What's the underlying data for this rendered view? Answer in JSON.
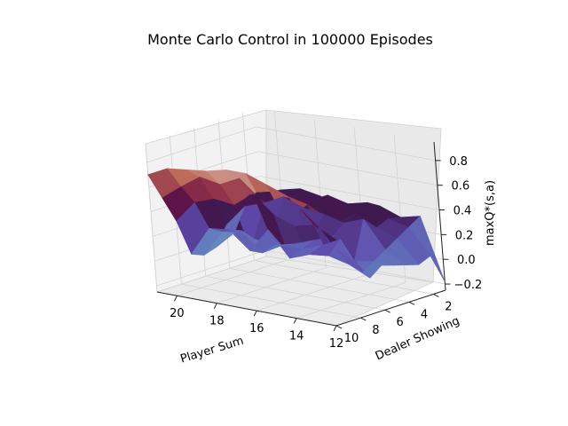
{
  "chart_data": {
    "type": "surface3d",
    "title": "Monte Carlo Control in 100000 Episodes",
    "xlabel": "Player Sum",
    "ylabel": "Dealer Showing",
    "zlabel": "maxQ*(s,a)",
    "x_ticks": [
      "20",
      "18",
      "16",
      "14",
      "12"
    ],
    "y_ticks": [
      "2",
      "4",
      "6",
      "8",
      "10"
    ],
    "z_ticks": [
      "0.8",
      "0.6",
      "0.4",
      "0.2",
      "0.0",
      "−0.2"
    ],
    "zlim": [
      -0.25,
      0.95
    ],
    "colormap": "twilight",
    "grid": true,
    "player_sum": [
      12,
      13,
      14,
      15,
      16,
      17,
      18,
      19,
      20,
      21
    ],
    "dealer_showing": [
      1,
      2,
      3,
      4,
      5,
      6,
      7,
      8,
      9,
      10
    ],
    "z": [
      [
        -0.18,
        0.06,
        0.02,
        0.05,
        0.08,
        0.11,
        0.04,
        0.2,
        0.38,
        0.62
      ],
      [
        0.32,
        0.26,
        0.2,
        0.14,
        0.08,
        0.02,
        0.12,
        0.28,
        0.46,
        0.7
      ],
      [
        0.28,
        0.3,
        0.26,
        0.36,
        0.05,
        0.26,
        0.16,
        0.44,
        0.6,
        0.74
      ],
      [
        0.34,
        0.4,
        0.34,
        0.3,
        0.22,
        0.18,
        0.14,
        0.4,
        0.54,
        0.8
      ],
      [
        0.32,
        0.36,
        0.24,
        0.34,
        0.16,
        0.12,
        0.08,
        0.46,
        0.62,
        0.86
      ],
      [
        0.26,
        0.4,
        0.4,
        0.36,
        0.1,
        0.12,
        0.28,
        0.6,
        0.76,
        0.86
      ],
      [
        0.33,
        0.3,
        0.36,
        0.42,
        0.06,
        0.03,
        0.08,
        0.48,
        0.68,
        0.82
      ],
      [
        0.36,
        0.33,
        0.4,
        0.34,
        0.08,
        0.18,
        0.22,
        0.5,
        0.71,
        0.8
      ],
      [
        0.32,
        0.3,
        0.36,
        0.28,
        0.1,
        0.14,
        0.2,
        0.44,
        0.6,
        0.78
      ],
      [
        0.26,
        0.28,
        0.22,
        0.1,
        -0.05,
        -0.08,
        -0.04,
        0.26,
        0.48,
        0.7
      ]
    ]
  }
}
